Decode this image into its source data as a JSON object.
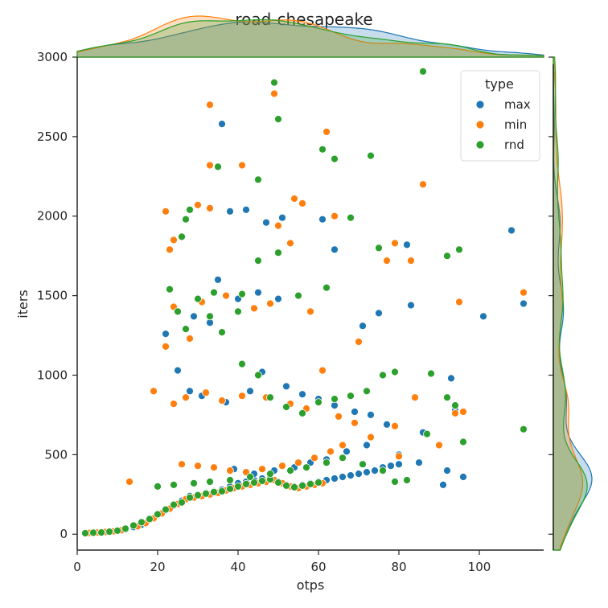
{
  "chart_data": {
    "type": "scatter",
    "title": "road-chesapeake",
    "xlabel": "otps",
    "ylabel": "iters",
    "xlim": [
      0,
      116
    ],
    "ylim": [
      -100,
      3000
    ],
    "xticks": [
      0,
      20,
      40,
      60,
      80,
      100
    ],
    "yticks": [
      0,
      500,
      1000,
      1500,
      2000,
      2500,
      3000
    ],
    "grid": false,
    "legend": {
      "title": "type",
      "position": "top-right"
    },
    "marginals": {
      "x": "kde",
      "y": "kde"
    },
    "series": [
      {
        "name": "max",
        "color": "#1f77b4",
        "points": [
          [
            2,
            5
          ],
          [
            4,
            8
          ],
          [
            6,
            12
          ],
          [
            8,
            15
          ],
          [
            10,
            20
          ],
          [
            12,
            30
          ],
          [
            14,
            45
          ],
          [
            16,
            60
          ],
          [
            18,
            90
          ],
          [
            20,
            120
          ],
          [
            22,
            150
          ],
          [
            24,
            180
          ],
          [
            26,
            210
          ],
          [
            28,
            240
          ],
          [
            30,
            250
          ],
          [
            32,
            260
          ],
          [
            34,
            270
          ],
          [
            36,
            280
          ],
          [
            38,
            300
          ],
          [
            40,
            320
          ],
          [
            42,
            330
          ],
          [
            44,
            340
          ],
          [
            46,
            350
          ],
          [
            48,
            360
          ],
          [
            50,
            330
          ],
          [
            52,
            310
          ],
          [
            54,
            300
          ],
          [
            56,
            310
          ],
          [
            58,
            320
          ],
          [
            60,
            330
          ],
          [
            62,
            340
          ],
          [
            64,
            350
          ],
          [
            66,
            360
          ],
          [
            68,
            370
          ],
          [
            70,
            380
          ],
          [
            72,
            390
          ],
          [
            74,
            400
          ],
          [
            76,
            420
          ],
          [
            78,
            430
          ],
          [
            80,
            440
          ],
          [
            36,
            2580
          ],
          [
            38,
            2030
          ],
          [
            42,
            2040
          ],
          [
            47,
            1960
          ],
          [
            51,
            1990
          ],
          [
            61,
            1980
          ],
          [
            64,
            1790
          ],
          [
            82,
            1820
          ],
          [
            108,
            1910
          ],
          [
            111,
            1450
          ],
          [
            101,
            1370
          ],
          [
            83,
            1440
          ],
          [
            75,
            1390
          ],
          [
            71,
            1310
          ],
          [
            50,
            1480
          ],
          [
            45,
            1520
          ],
          [
            40,
            1480
          ],
          [
            35,
            1600
          ],
          [
            33,
            1330
          ],
          [
            29,
            1370
          ],
          [
            22,
            1260
          ],
          [
            25,
            1030
          ],
          [
            28,
            900
          ],
          [
            31,
            870
          ],
          [
            37,
            830
          ],
          [
            43,
            900
          ],
          [
            46,
            1020
          ],
          [
            52,
            930
          ],
          [
            56,
            880
          ],
          [
            60,
            850
          ],
          [
            64,
            810
          ],
          [
            69,
            770
          ],
          [
            73,
            750
          ],
          [
            77,
            690
          ],
          [
            86,
            640
          ],
          [
            93,
            980
          ],
          [
            94,
            780
          ],
          [
            96,
            360
          ],
          [
            92,
            400
          ],
          [
            91,
            310
          ],
          [
            85,
            450
          ],
          [
            80,
            500
          ],
          [
            72,
            560
          ],
          [
            67,
            520
          ],
          [
            62,
            470
          ],
          [
            58,
            450
          ],
          [
            54,
            420
          ],
          [
            49,
            400
          ],
          [
            44,
            380
          ],
          [
            39,
            410
          ]
        ]
      },
      {
        "name": "min",
        "color": "#ff7f0e",
        "points": [
          [
            3,
            8
          ],
          [
            5,
            10
          ],
          [
            7,
            14
          ],
          [
            9,
            18
          ],
          [
            11,
            25
          ],
          [
            13,
            330
          ],
          [
            15,
            50
          ],
          [
            17,
            70
          ],
          [
            19,
            100
          ],
          [
            21,
            130
          ],
          [
            23,
            160
          ],
          [
            25,
            190
          ],
          [
            27,
            220
          ],
          [
            29,
            230
          ],
          [
            31,
            240
          ],
          [
            33,
            250
          ],
          [
            35,
            260
          ],
          [
            37,
            275
          ],
          [
            39,
            290
          ],
          [
            41,
            300
          ],
          [
            43,
            310
          ],
          [
            45,
            320
          ],
          [
            47,
            330
          ],
          [
            49,
            340
          ],
          [
            51,
            320
          ],
          [
            53,
            300
          ],
          [
            55,
            290
          ],
          [
            57,
            300
          ],
          [
            59,
            310
          ],
          [
            61,
            320
          ],
          [
            33,
            2700
          ],
          [
            49,
            2770
          ],
          [
            62,
            2530
          ],
          [
            86,
            2200
          ],
          [
            41,
            2320
          ],
          [
            33,
            2320
          ],
          [
            30,
            2070
          ],
          [
            33,
            2050
          ],
          [
            22,
            2030
          ],
          [
            54,
            2110
          ],
          [
            56,
            2080
          ],
          [
            64,
            2000
          ],
          [
            50,
            1940
          ],
          [
            53,
            1830
          ],
          [
            24,
            1850
          ],
          [
            23,
            1790
          ],
          [
            79,
            1830
          ],
          [
            83,
            1720
          ],
          [
            77,
            1720
          ],
          [
            111,
            1520
          ],
          [
            95,
            1460
          ],
          [
            70,
            1210
          ],
          [
            58,
            1400
          ],
          [
            48,
            1450
          ],
          [
            44,
            1420
          ],
          [
            37,
            1500
          ],
          [
            31,
            1460
          ],
          [
            28,
            1230
          ],
          [
            24,
            1430
          ],
          [
            22,
            1180
          ],
          [
            19,
            900
          ],
          [
            24,
            820
          ],
          [
            27,
            860
          ],
          [
            32,
            890
          ],
          [
            36,
            840
          ],
          [
            41,
            870
          ],
          [
            47,
            860
          ],
          [
            53,
            820
          ],
          [
            57,
            790
          ],
          [
            61,
            1030
          ],
          [
            65,
            740
          ],
          [
            69,
            700
          ],
          [
            79,
            680
          ],
          [
            84,
            860
          ],
          [
            90,
            560
          ],
          [
            94,
            760
          ],
          [
            96,
            770
          ],
          [
            80,
            490
          ],
          [
            73,
            610
          ],
          [
            66,
            560
          ],
          [
            63,
            520
          ],
          [
            59,
            480
          ],
          [
            55,
            450
          ],
          [
            51,
            430
          ],
          [
            46,
            410
          ],
          [
            42,
            390
          ],
          [
            38,
            400
          ],
          [
            34,
            420
          ],
          [
            30,
            430
          ],
          [
            26,
            440
          ]
        ]
      },
      {
        "name": "rnd",
        "color": "#2ca02c",
        "points": [
          [
            2,
            6
          ],
          [
            4,
            9
          ],
          [
            6,
            11
          ],
          [
            8,
            16
          ],
          [
            10,
            22
          ],
          [
            12,
            35
          ],
          [
            14,
            55
          ],
          [
            16,
            75
          ],
          [
            18,
            95
          ],
          [
            20,
            125
          ],
          [
            22,
            155
          ],
          [
            24,
            185
          ],
          [
            26,
            200
          ],
          [
            28,
            230
          ],
          [
            30,
            245
          ],
          [
            32,
            255
          ],
          [
            34,
            265
          ],
          [
            36,
            270
          ],
          [
            38,
            285
          ],
          [
            40,
            300
          ],
          [
            42,
            315
          ],
          [
            44,
            325
          ],
          [
            46,
            335
          ],
          [
            48,
            345
          ],
          [
            50,
            325
          ],
          [
            52,
            305
          ],
          [
            54,
            295
          ],
          [
            56,
            305
          ],
          [
            58,
            315
          ],
          [
            60,
            325
          ],
          [
            49,
            2840
          ],
          [
            86,
            2910
          ],
          [
            50,
            2610
          ],
          [
            61,
            2420
          ],
          [
            64,
            2360
          ],
          [
            73,
            2380
          ],
          [
            35,
            2310
          ],
          [
            45,
            2230
          ],
          [
            28,
            2040
          ],
          [
            27,
            1980
          ],
          [
            26,
            1870
          ],
          [
            45,
            1720
          ],
          [
            50,
            1770
          ],
          [
            68,
            1990
          ],
          [
            75,
            1800
          ],
          [
            95,
            1790
          ],
          [
            92,
            1750
          ],
          [
            62,
            1550
          ],
          [
            55,
            1500
          ],
          [
            41,
            1510
          ],
          [
            34,
            1520
          ],
          [
            30,
            1480
          ],
          [
            23,
            1540
          ],
          [
            25,
            1400
          ],
          [
            27,
            1290
          ],
          [
            33,
            1370
          ],
          [
            40,
            1400
          ],
          [
            36,
            1270
          ],
          [
            41,
            1070
          ],
          [
            45,
            1000
          ],
          [
            48,
            860
          ],
          [
            52,
            800
          ],
          [
            56,
            760
          ],
          [
            60,
            830
          ],
          [
            64,
            850
          ],
          [
            68,
            870
          ],
          [
            72,
            900
          ],
          [
            76,
            1000
          ],
          [
            79,
            1020
          ],
          [
            88,
            1010
          ],
          [
            92,
            860
          ],
          [
            96,
            580
          ],
          [
            111,
            660
          ],
          [
            94,
            810
          ],
          [
            87,
            630
          ],
          [
            82,
            340
          ],
          [
            79,
            330
          ],
          [
            76,
            400
          ],
          [
            71,
            440
          ],
          [
            66,
            480
          ],
          [
            62,
            450
          ],
          [
            57,
            420
          ],
          [
            53,
            400
          ],
          [
            48,
            380
          ],
          [
            43,
            360
          ],
          [
            38,
            340
          ],
          [
            33,
            330
          ],
          [
            29,
            320
          ],
          [
            24,
            310
          ],
          [
            20,
            300
          ]
        ]
      }
    ]
  }
}
